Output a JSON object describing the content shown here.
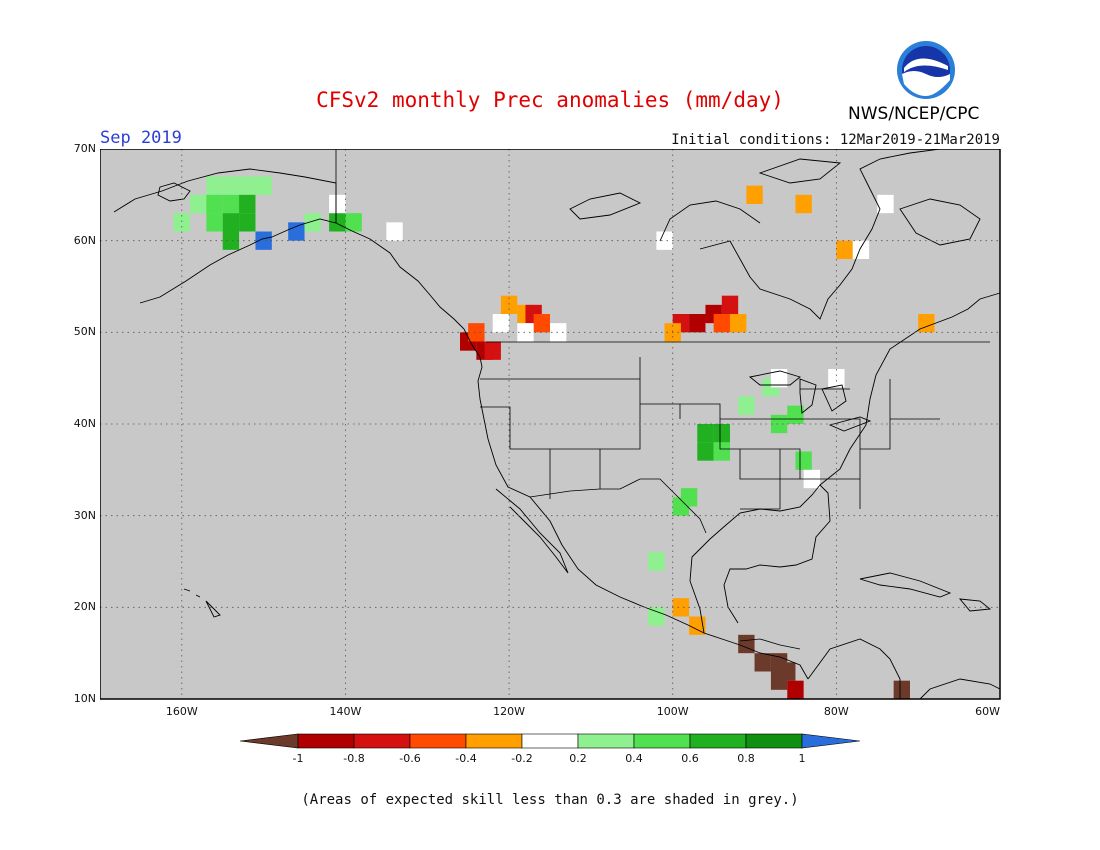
{
  "header": {
    "title": "CFSv2 monthly Prec anomalies (mm/day)",
    "month": "Sep 2019",
    "initial_conditions": "Initial conditions: 12Mar2019-21Mar2019",
    "agency": "NWS/NCEP/CPC",
    "logo_text": "NOAA"
  },
  "map": {
    "lon_range": [
      -170,
      -60
    ],
    "lat_range": [
      10,
      70
    ],
    "lon_ticks": [
      {
        "value": -160,
        "label": "160W"
      },
      {
        "value": -140,
        "label": "140W"
      },
      {
        "value": -120,
        "label": "120W"
      },
      {
        "value": -100,
        "label": "100W"
      },
      {
        "value": -80,
        "label": "80W"
      },
      {
        "value": -60,
        "label": "60W"
      }
    ],
    "lat_ticks": [
      {
        "value": 70,
        "label": "70N"
      },
      {
        "value": 60,
        "label": "60N"
      },
      {
        "value": 50,
        "label": "50N"
      },
      {
        "value": 40,
        "label": "40N"
      },
      {
        "value": 30,
        "label": "30N"
      },
      {
        "value": 20,
        "label": "20N"
      },
      {
        "value": 10,
        "label": "10N"
      }
    ],
    "background_color": "#c8c8c8",
    "anomaly_cells": [
      {
        "lon": -156,
        "lat": 66,
        "v": 0.3
      },
      {
        "lon": -154,
        "lat": 66,
        "v": 0.3
      },
      {
        "lon": -152,
        "lat": 66,
        "v": 0.3
      },
      {
        "lon": -150,
        "lat": 66,
        "v": 0.3
      },
      {
        "lon": -158,
        "lat": 64,
        "v": 0.3
      },
      {
        "lon": -156,
        "lat": 64,
        "v": 0.5
      },
      {
        "lon": -154,
        "lat": 64,
        "v": 0.5
      },
      {
        "lon": -152,
        "lat": 64,
        "v": 0.7
      },
      {
        "lon": -160,
        "lat": 62,
        "v": 0.3
      },
      {
        "lon": -156,
        "lat": 62,
        "v": 0.5
      },
      {
        "lon": -154,
        "lat": 62,
        "v": 0.7
      },
      {
        "lon": -152,
        "lat": 62,
        "v": 0.7
      },
      {
        "lon": -154,
        "lat": 60,
        "v": 0.7
      },
      {
        "lon": -150,
        "lat": 60,
        "v": 1.0
      },
      {
        "lon": -146,
        "lat": 61,
        "v": 1.0
      },
      {
        "lon": -144,
        "lat": 62,
        "v": 0.3
      },
      {
        "lon": -141,
        "lat": 62,
        "v": 0.7
      },
      {
        "lon": -139,
        "lat": 62,
        "v": 0.5
      },
      {
        "lon": -141,
        "lat": 64,
        "v": 0.0
      },
      {
        "lon": -134,
        "lat": 61,
        "v": 0.0
      },
      {
        "lon": -125,
        "lat": 49,
        "v": -0.9
      },
      {
        "lon": -123,
        "lat": 48,
        "v": -0.9
      },
      {
        "lon": -122,
        "lat": 48,
        "v": -0.7
      },
      {
        "lon": -124,
        "lat": 50,
        "v": -0.5
      },
      {
        "lon": -120,
        "lat": 53,
        "v": -0.3
      },
      {
        "lon": -118,
        "lat": 52,
        "v": -0.3
      },
      {
        "lon": -117,
        "lat": 52,
        "v": -0.7
      },
      {
        "lon": -116,
        "lat": 51,
        "v": -0.5
      },
      {
        "lon": -121,
        "lat": 51,
        "v": 0.0
      },
      {
        "lon": -118,
        "lat": 50,
        "v": 0.0
      },
      {
        "lon": -114,
        "lat": 50,
        "v": 0.0
      },
      {
        "lon": -93,
        "lat": 53,
        "v": -0.7
      },
      {
        "lon": -95,
        "lat": 52,
        "v": -0.9
      },
      {
        "lon": -97,
        "lat": 51,
        "v": -0.9
      },
      {
        "lon": -99,
        "lat": 51,
        "v": -0.7
      },
      {
        "lon": -100,
        "lat": 50,
        "v": -0.3
      },
      {
        "lon": -92,
        "lat": 51,
        "v": -0.3
      },
      {
        "lon": -94,
        "lat": 51,
        "v": -0.5
      },
      {
        "lon": -90,
        "lat": 65,
        "v": -0.3
      },
      {
        "lon": -84,
        "lat": 64,
        "v": -0.3
      },
      {
        "lon": -79,
        "lat": 59,
        "v": -0.3
      },
      {
        "lon": -69,
        "lat": 51,
        "v": -0.3
      },
      {
        "lon": -101,
        "lat": 60,
        "v": 0.0
      },
      {
        "lon": -77,
        "lat": 59,
        "v": 0.0
      },
      {
        "lon": -74,
        "lat": 64,
        "v": 0.0
      },
      {
        "lon": -96,
        "lat": 39,
        "v": 0.7
      },
      {
        "lon": -94,
        "lat": 39,
        "v": 0.7
      },
      {
        "lon": -96,
        "lat": 37,
        "v": 0.7
      },
      {
        "lon": -94,
        "lat": 37,
        "v": 0.5
      },
      {
        "lon": -91,
        "lat": 42,
        "v": 0.3
      },
      {
        "lon": -88,
        "lat": 44,
        "v": 0.3
      },
      {
        "lon": -87,
        "lat": 40,
        "v": 0.5
      },
      {
        "lon": -85,
        "lat": 41,
        "v": 0.5
      },
      {
        "lon": -87,
        "lat": 45,
        "v": 0.0
      },
      {
        "lon": -80,
        "lat": 45,
        "v": 0.0
      },
      {
        "lon": -84,
        "lat": 36,
        "v": 0.5
      },
      {
        "lon": -83,
        "lat": 34,
        "v": 0.0
      },
      {
        "lon": -98,
        "lat": 32,
        "v": 0.5
      },
      {
        "lon": -99,
        "lat": 31,
        "v": 0.5
      },
      {
        "lon": -102,
        "lat": 25,
        "v": 0.3
      },
      {
        "lon": -99,
        "lat": 20,
        "v": -0.3
      },
      {
        "lon": -102,
        "lat": 19,
        "v": 0.3
      },
      {
        "lon": -97,
        "lat": 18,
        "v": -0.3
      },
      {
        "lon": -91,
        "lat": 16,
        "v": -1.1
      },
      {
        "lon": -89,
        "lat": 14,
        "v": -1.1
      },
      {
        "lon": -87,
        "lat": 14,
        "v": -1.1
      },
      {
        "lon": -86,
        "lat": 13,
        "v": -1.1
      },
      {
        "lon": -87,
        "lat": 12,
        "v": -1.1
      },
      {
        "lon": -85,
        "lat": 11,
        "v": -0.9
      },
      {
        "lon": -72,
        "lat": 11,
        "v": -1.1
      }
    ]
  },
  "colorbar": {
    "tick_labels": [
      "-1",
      "-0.8",
      "-0.6",
      "-0.4",
      "-0.2",
      "0.2",
      "0.4",
      "0.6",
      "0.8",
      "1"
    ],
    "colors": {
      "below_min": "#6b3a2a",
      "c1": "#b00000",
      "c2": "#d41010",
      "c3": "#ff4a00",
      "c4": "#ffa000",
      "c5": "#ffffff",
      "c6": "#8ef08e",
      "c7": "#50e050",
      "c8": "#20b020",
      "c9": "#109010",
      "above_max": "#2a6edc"
    }
  },
  "footnote": "(Areas of expected skill less than 0.3 are shaded in grey.)"
}
